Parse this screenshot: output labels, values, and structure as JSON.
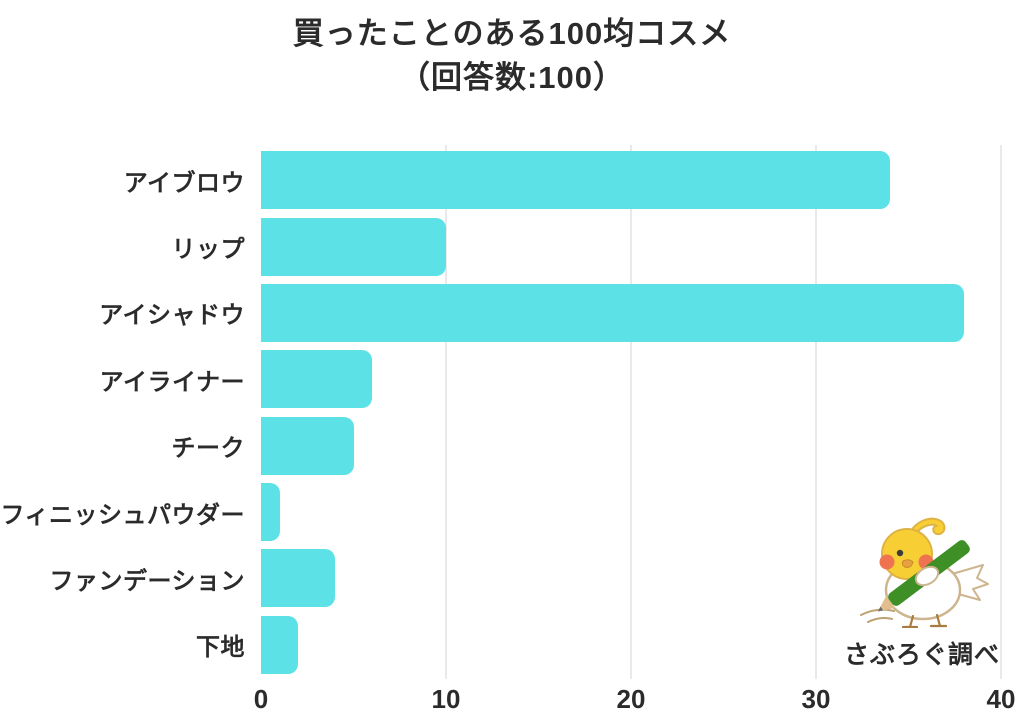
{
  "title": {
    "line1": "買ったことのある100均コスメ",
    "line2": "（回答数:100）"
  },
  "chart_data": {
    "type": "bar",
    "orientation": "horizontal",
    "title": "買ったことのある100均コスメ（回答数:100）",
    "response_count": 100,
    "categories": [
      "アイブロウ",
      "リップ",
      "アイシャドウ",
      "アイライナー",
      "チーク",
      "フィニッシュパウダー",
      "ファンデーション",
      "下地"
    ],
    "values": [
      34,
      10,
      38,
      6,
      5,
      1,
      4,
      2
    ],
    "xlabel": "",
    "ylabel": "",
    "xlim": [
      0,
      40
    ],
    "xticks": [
      0,
      10,
      20,
      30,
      40
    ],
    "legend": "none",
    "grid": "vertical",
    "bar_color": "#5CE1E6",
    "gridline_color": "#E9E9E9",
    "text_color": "#2B2B2B",
    "background_color": "#FFFFFF"
  },
  "credit": {
    "label": "さぶろぐ調べ",
    "icon": "bird-with-pencil-mascot",
    "mascot_colors": {
      "head": "#F7CF35",
      "cheek": "#EF7350",
      "pencil": "#3E8F26",
      "outline": "#CDB58F"
    }
  }
}
